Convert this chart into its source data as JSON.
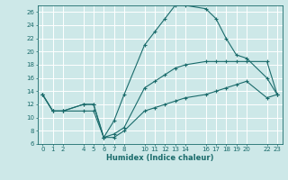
{
  "xlabel": "Humidex (Indice chaleur)",
  "bg_color": "#cde8e8",
  "grid_color": "#ffffff",
  "line_color": "#1a6b6b",
  "ylim": [
    6,
    27
  ],
  "xlim": [
    -0.5,
    23.5
  ],
  "yticks": [
    6,
    8,
    10,
    12,
    14,
    16,
    18,
    20,
    22,
    24,
    26
  ],
  "xticks": [
    0,
    1,
    2,
    4,
    5,
    6,
    7,
    8,
    10,
    11,
    12,
    13,
    14,
    16,
    17,
    18,
    19,
    20,
    22,
    23
  ],
  "line1_x": [
    0,
    1,
    2,
    4,
    5,
    6,
    7,
    8,
    10,
    11,
    12,
    13,
    14,
    16,
    17,
    18,
    19,
    20,
    22,
    23
  ],
  "line1_y": [
    13.5,
    11,
    11,
    12,
    12,
    7,
    9.5,
    13.5,
    21,
    23,
    25,
    27,
    27,
    26.5,
    25,
    22,
    19.5,
    19,
    16,
    13.5
  ],
  "line2_x": [
    0,
    1,
    2,
    4,
    5,
    6,
    7,
    8,
    10,
    11,
    12,
    13,
    14,
    16,
    17,
    18,
    19,
    20,
    22,
    23
  ],
  "line2_y": [
    13.5,
    11,
    11,
    12,
    12,
    7,
    7.5,
    8.5,
    14.5,
    15.5,
    16.5,
    17.5,
    18,
    18.5,
    18.5,
    18.5,
    18.5,
    18.5,
    18.5,
    13.5
  ],
  "line3_x": [
    0,
    1,
    2,
    4,
    5,
    6,
    7,
    8,
    10,
    11,
    12,
    13,
    14,
    16,
    17,
    18,
    19,
    20,
    22,
    23
  ],
  "line3_y": [
    13.5,
    11,
    11,
    11,
    11,
    7,
    7,
    8,
    11,
    11.5,
    12,
    12.5,
    13,
    13.5,
    14,
    14.5,
    15,
    15.5,
    13,
    13.5
  ],
  "tick_fontsize": 5.0,
  "xlabel_fontsize": 6.0
}
